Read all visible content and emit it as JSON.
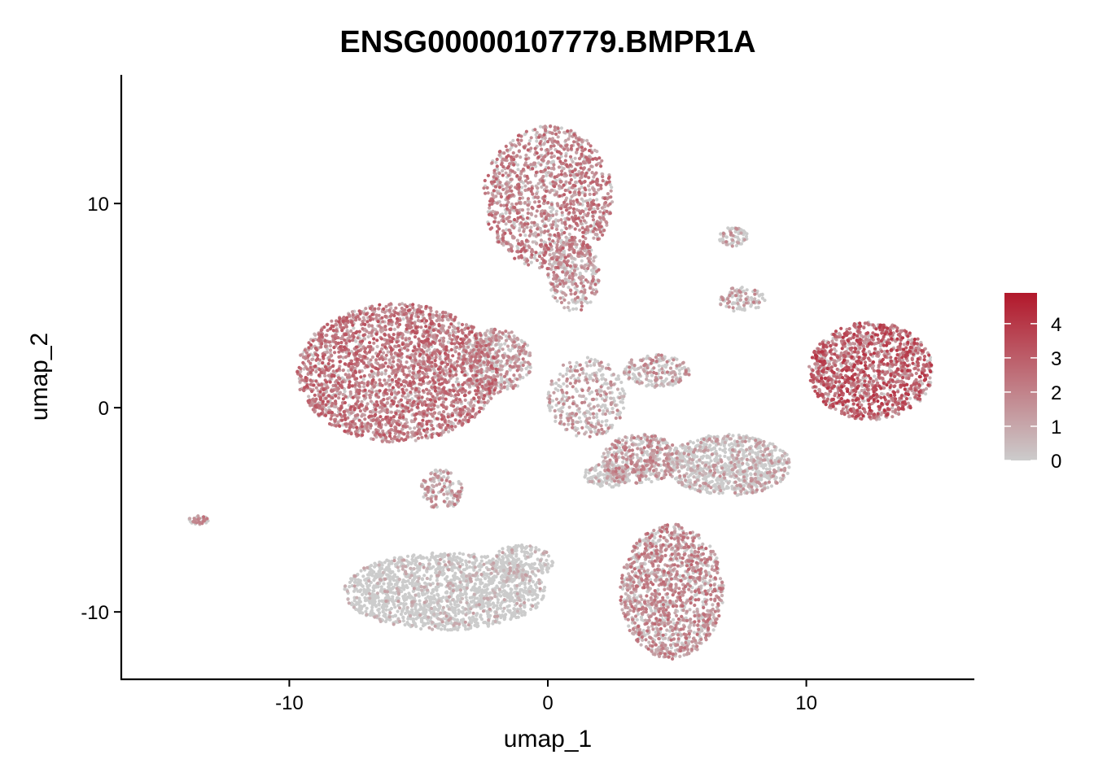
{
  "chart_data": {
    "type": "scatter",
    "title": "ENSG00000107779.BMPR1A",
    "xlabel": "umap_1",
    "ylabel": "umap_2",
    "xlim": [
      -16.5,
      16.5
    ],
    "ylim": [
      -13.3,
      16.3
    ],
    "x_ticks": [
      -10,
      0,
      10
    ],
    "x_tick_labels": [
      "-10",
      "0",
      "10"
    ],
    "y_ticks": [
      -10,
      0,
      10
    ],
    "y_tick_labels": [
      "-10",
      "0",
      "10"
    ],
    "color_scale": {
      "low_color": "#cccccc",
      "high_color": "#b2182b",
      "min": 0,
      "max": 4.9,
      "breaks": [
        0,
        1,
        2,
        3,
        4
      ],
      "break_labels": [
        "0",
        "1",
        "2",
        "3",
        "4"
      ]
    },
    "grid": false,
    "legend_position": "right",
    "clusters": [
      {
        "cx": 0.0,
        "cy": 10.3,
        "rx": 2.5,
        "ry": 3.5,
        "n": 1300,
        "mean_expr": 1.3
      },
      {
        "cx": 1.0,
        "cy": 6.5,
        "rx": 1.0,
        "ry": 1.8,
        "n": 300,
        "mean_expr": 1.0
      },
      {
        "cx": -5.8,
        "cy": 1.7,
        "rx": 3.9,
        "ry": 3.4,
        "n": 2600,
        "mean_expr": 1.5
      },
      {
        "cx": -2.0,
        "cy": 2.3,
        "rx": 1.4,
        "ry": 1.6,
        "n": 400,
        "mean_expr": 0.9
      },
      {
        "cx": 12.5,
        "cy": 1.8,
        "rx": 2.4,
        "ry": 2.4,
        "n": 1300,
        "mean_expr": 2.0
      },
      {
        "cx": 4.2,
        "cy": 1.8,
        "rx": 1.3,
        "ry": 0.8,
        "n": 200,
        "mean_expr": 0.8
      },
      {
        "cx": 1.5,
        "cy": 0.5,
        "rx": 1.5,
        "ry": 2.0,
        "n": 350,
        "mean_expr": 0.8
      },
      {
        "cx": 7.2,
        "cy": 8.4,
        "rx": 0.6,
        "ry": 0.5,
        "n": 70,
        "mean_expr": 0.6
      },
      {
        "cx": 7.5,
        "cy": 5.3,
        "rx": 0.9,
        "ry": 0.6,
        "n": 100,
        "mean_expr": 0.7
      },
      {
        "cx": 7.0,
        "cy": -2.8,
        "rx": 2.4,
        "ry": 1.5,
        "n": 900,
        "mean_expr": 0.5
      },
      {
        "cx": 3.6,
        "cy": -2.5,
        "rx": 1.5,
        "ry": 1.2,
        "n": 400,
        "mean_expr": 0.9
      },
      {
        "cx": 2.3,
        "cy": -3.3,
        "rx": 0.9,
        "ry": 0.6,
        "n": 150,
        "mean_expr": 0.5
      },
      {
        "cx": 4.8,
        "cy": -9.0,
        "rx": 2.0,
        "ry": 3.3,
        "n": 1300,
        "mean_expr": 1.1
      },
      {
        "cx": -4.0,
        "cy": -9.0,
        "rx": 3.9,
        "ry": 1.9,
        "n": 1600,
        "mean_expr": 0.2
      },
      {
        "cx": -1.0,
        "cy": -7.6,
        "rx": 1.2,
        "ry": 0.9,
        "n": 200,
        "mean_expr": 0.2
      },
      {
        "cx": -4.1,
        "cy": -4.0,
        "rx": 0.8,
        "ry": 1.0,
        "n": 140,
        "mean_expr": 0.9
      },
      {
        "cx": -13.5,
        "cy": -5.5,
        "rx": 0.4,
        "ry": 0.22,
        "n": 40,
        "mean_expr": 1.0
      }
    ]
  }
}
